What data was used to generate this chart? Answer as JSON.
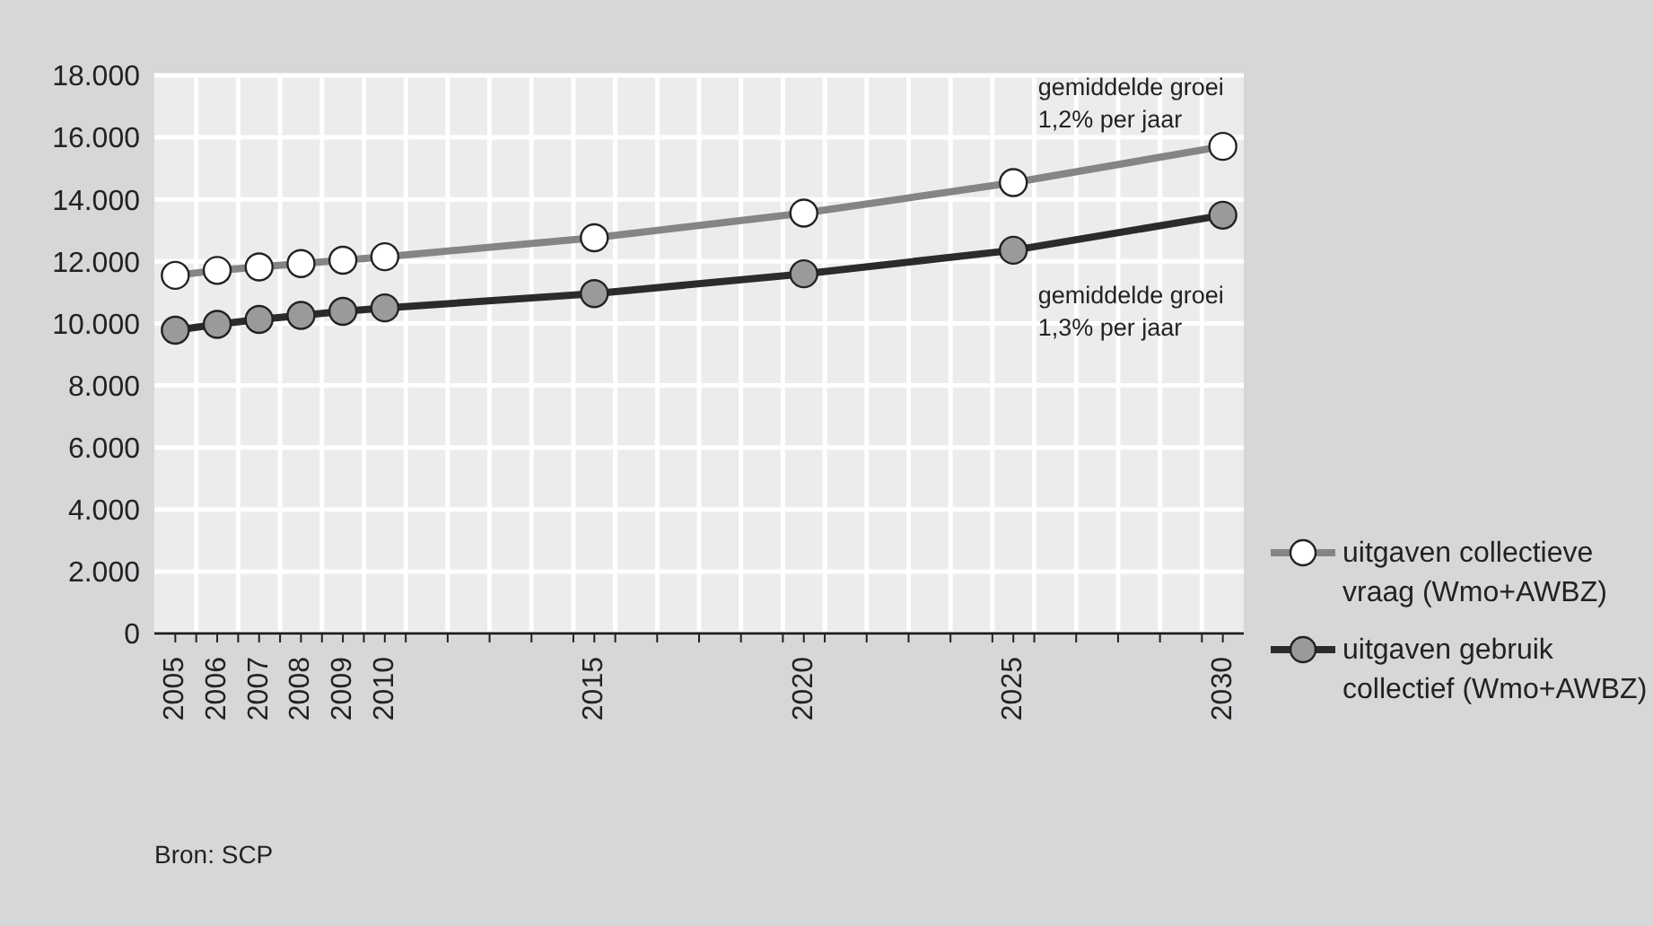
{
  "chart_data": {
    "type": "line",
    "x": [
      2005,
      2006,
      2007,
      2008,
      2009,
      2010,
      2015,
      2020,
      2025,
      2030
    ],
    "series": [
      {
        "name": "uitgaven collectieve vraag (Wmo+AWBZ)",
        "color": "#858585",
        "values": [
          11550,
          11710,
          11820,
          11930,
          12040,
          12150,
          12760,
          13560,
          14540,
          15710
        ]
      },
      {
        "name": "uitgaven gebruik collectief (Wmo+AWBZ)",
        "color": "#2b2b2b",
        "values": [
          9780,
          9970,
          10130,
          10260,
          10390,
          10500,
          10960,
          11600,
          12360,
          13490
        ]
      }
    ],
    "xlim": [
      2004.5,
      2030.5
    ],
    "xticks": [
      2005,
      2006,
      2007,
      2008,
      2009,
      2010,
      2015,
      2020,
      2025,
      2030,
      {
        "value": 2005.5,
        "label": null
      },
      {
        "value": 2006.5,
        "label": null
      },
      {
        "value": 2007.5,
        "label": null
      },
      {
        "value": 2008.5,
        "label": null
      },
      {
        "value": 2009.5,
        "label": null
      },
      {
        "value": 2010.5,
        "label": null
      },
      {
        "value": 2011.5,
        "label": null
      },
      {
        "value": 2012.5,
        "label": null
      },
      {
        "value": 2013.5,
        "label": null
      },
      {
        "value": 2014.5,
        "label": null
      },
      {
        "value": 2015.5,
        "label": null
      },
      {
        "value": 2016.5,
        "label": null
      },
      {
        "value": 2017.5,
        "label": null
      },
      {
        "value": 2018.5,
        "label": null
      },
      {
        "value": 2019.5,
        "label": null
      },
      {
        "value": 2020.5,
        "label": null
      },
      {
        "value": 2021.5,
        "label": null
      },
      {
        "value": 2022.5,
        "label": null
      },
      {
        "value": 2023.5,
        "label": null
      },
      {
        "value": 2024.5,
        "label": null
      },
      {
        "value": 2025.5,
        "label": null
      },
      {
        "value": 2026.5,
        "label": null
      },
      {
        "value": 2027.5,
        "label": null
      },
      {
        "value": 2028.5,
        "label": null
      },
      {
        "value": 2029.5,
        "label": null
      }
    ],
    "ylim": [
      0,
      18000
    ],
    "yticks": [
      {
        "value": 0,
        "label": "0"
      },
      {
        "value": 2000,
        "label": "2.000"
      },
      {
        "value": 4000,
        "label": "4.000"
      },
      {
        "value": 6000,
        "label": "6.000"
      },
      {
        "value": 8000,
        "label": "8.000"
      },
      {
        "value": 10000,
        "label": "10.000"
      },
      {
        "value": 12000,
        "label": "12.000"
      },
      {
        "value": 14000,
        "label": "14.000"
      },
      {
        "value": 16000,
        "label": "16.000"
      },
      {
        "value": 18000,
        "label": "18.000"
      }
    ],
    "grid": true,
    "legend": "bottom right",
    "marker": "circle",
    "line_style": "solid",
    "annotations": [
      {
        "text": "gemiddelde groei\n1,2% per jaar",
        "x": 2030,
        "y": 15710
      },
      {
        "text": "gemiddelde groei\n1,3% per jaar",
        "x": 2030,
        "y": 13490
      },
      "Bron: SCP"
    ]
  }
}
